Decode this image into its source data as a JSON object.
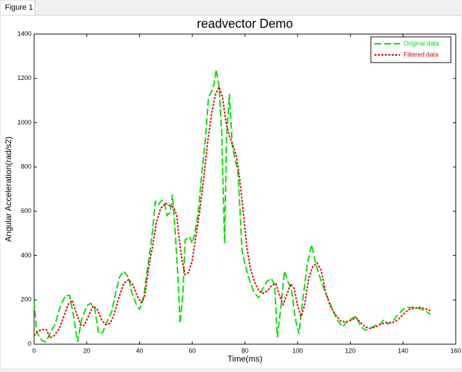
{
  "window": {
    "title": "Figure 1"
  },
  "chart_data": {
    "type": "line",
    "title": "readvector Demo",
    "x_label": "Time(ms)",
    "y_label": "Angular Acceleration(rad/s2)",
    "xlim": [
      0,
      160
    ],
    "xticks": [
      0,
      20,
      40,
      60,
      80,
      100,
      120,
      140,
      160
    ],
    "ylim": [
      0,
      1400
    ],
    "yticks": [
      0,
      200,
      400,
      600,
      800,
      1000,
      1200,
      1400
    ],
    "legend": "upper right",
    "grid": false,
    "series": [
      {
        "name": "Original data",
        "color": "#00e000",
        "dash": "dashed",
        "x": [
          0,
          1,
          3,
          4.5,
          6,
          8,
          10,
          12,
          13.5,
          15,
          16.5,
          18,
          20,
          21.5,
          23,
          24.5,
          26,
          28,
          29.5,
          31,
          32.5,
          34,
          36,
          37,
          39,
          40,
          41.5,
          42.5,
          44,
          45,
          46,
          47,
          48.5,
          49.6,
          50.5,
          51.7,
          52.5,
          53.5,
          54.6,
          55.4,
          56.5,
          57.3,
          58.3,
          59,
          60,
          61,
          62.3,
          63.6,
          65,
          66.2,
          67.5,
          68.3,
          69.1,
          70.2,
          71.2,
          72.3,
          73,
          74.1,
          75.2,
          76.3,
          77.3,
          78.1,
          78.9,
          80,
          81.5,
          83.4,
          85.2,
          86.8,
          88.4,
          90,
          91.3,
          92.3,
          93.7,
          95,
          96.3,
          97.6,
          99.2,
          100.5,
          102,
          103.7,
          105.3,
          106.9,
          109,
          111,
          113.2,
          115.3,
          117.2,
          118.7,
          120.6,
          122.2,
          124,
          125.9,
          127.7,
          129.6,
          131.4,
          132.7,
          134.3,
          136.1,
          138,
          140,
          141.7,
          143.5,
          145.4,
          147.2,
          148.8,
          150.4
        ],
        "values": [
          195,
          53,
          16,
          10,
          47,
          91,
          173,
          220,
          220,
          125,
          10,
          110,
          173,
          185,
          163,
          47,
          53,
          110,
          148,
          235,
          305,
          330,
          298,
          235,
          173,
          157,
          204,
          298,
          424,
          518,
          644,
          628,
          650,
          634,
          581,
          596,
          675,
          518,
          298,
          94,
          235,
          470,
          480,
          486,
          455,
          502,
          596,
          769,
          926,
          1114,
          1146,
          1177,
          1240,
          1161,
          957,
          455,
          926,
          1130,
          895,
          832,
          785,
          612,
          424,
          361,
          298,
          235,
          210,
          251,
          283,
          298,
          267,
          31,
          173,
          330,
          283,
          251,
          110,
          47,
          204,
          361,
          449,
          361,
          283,
          220,
          157,
          104,
          78,
          104,
          116,
          126,
          78,
          63,
          72,
          85,
          91,
          110,
          91,
          104,
          132,
          157,
          166,
          166,
          163,
          157,
          148,
          135
        ]
      },
      {
        "name": "Filtered data",
        "color": "#e00000",
        "dash": "dotted",
        "x": [
          0,
          1.6,
          3.4,
          4.7,
          6,
          7.6,
          9.5,
          11.3,
          13,
          14.5,
          16,
          17.7,
          19,
          20.6,
          22.4,
          24,
          25.6,
          27.2,
          28.8,
          30.3,
          32,
          34,
          35.9,
          37.5,
          39,
          40.6,
          42,
          43.3,
          44.9,
          46.4,
          48,
          49.9,
          51.5,
          53,
          54.1,
          55.1,
          56.2,
          57.3,
          58.6,
          60,
          61.2,
          62.8,
          64.4,
          66,
          67.5,
          68.9,
          70.2,
          71.5,
          72.8,
          74.1,
          75.5,
          76.8,
          78.1,
          79.4,
          80.7,
          82,
          83.6,
          85.2,
          86.8,
          88.7,
          90.2,
          91.8,
          93.1,
          94.5,
          95.8,
          97.4,
          98.7,
          100,
          101.3,
          102.6,
          104.2,
          105.8,
          107.4,
          109,
          110.6,
          112.4,
          114.2,
          116.4,
          118.5,
          120.6,
          122.2,
          123.7,
          125.6,
          127.4,
          129.6,
          131.7,
          133.8,
          135.9,
          138,
          140.1,
          142.2,
          144.3,
          146.4,
          148.5,
          150.4
        ],
        "values": [
          38,
          60,
          66,
          66,
          28,
          38,
          69,
          126,
          182,
          198,
          141,
          85,
          85,
          126,
          173,
          157,
          110,
          88,
          94,
          132,
          204,
          273,
          292,
          267,
          220,
          188,
          220,
          330,
          439,
          549,
          612,
          637,
          625,
          618,
          581,
          470,
          376,
          314,
          323,
          376,
          470,
          596,
          753,
          926,
          1051,
          1130,
          1161,
          1114,
          1004,
          941,
          895,
          847,
          738,
          596,
          439,
          345,
          283,
          242,
          229,
          242,
          267,
          273,
          220,
          179,
          220,
          273,
          251,
          173,
          126,
          173,
          298,
          352,
          367,
          330,
          235,
          173,
          135,
          104,
          100,
          110,
          119,
          100,
          78,
          72,
          78,
          91,
          97,
          97,
          110,
          135,
          157,
          163,
          166,
          160,
          151
        ]
      }
    ]
  }
}
